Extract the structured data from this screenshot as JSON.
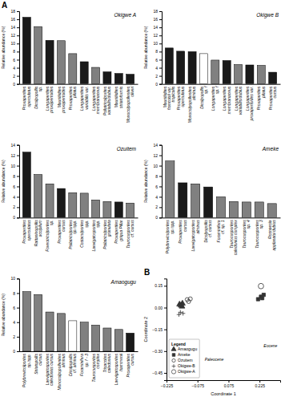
{
  "chart_data": [
    {
      "type": "bar",
      "title": "Okigwe A",
      "ylabel": "Relative abundance (%)",
      "categories": [
        "Proxapertites\noperculatus",
        "Dicolpopollis\nsp.",
        "Longapertites\nproxapertoides",
        "Mauritiidites\nproxapertoides",
        "Proxapertites\npilatus",
        "Longapertites\nvariabilis var.",
        "Longapertites\nmembranaceus",
        "Psilatricolporites\nvariabilis/dubius",
        "Mauritiidites\nstriatoformis",
        "Monocolpopollenites\noliveri"
      ],
      "values": [
        16.5,
        14.2,
        10.8,
        10.7,
        7.5,
        5.5,
        4.1,
        3.0,
        2.6,
        2.4
      ],
      "colors": [
        "#1a1a1a",
        "#808080",
        "#1a1a1a",
        "#808080",
        "#808080",
        "#1a1a1a",
        "#808080",
        "#1a1a1a",
        "#1a1a1a",
        "#1a1a1a"
      ],
      "ylim": [
        0,
        18
      ],
      "yticks": [
        0,
        2,
        4,
        6,
        8,
        10,
        12,
        14,
        16,
        18
      ],
      "annotations": [
        {
          "text": "A"
        }
      ]
    },
    {
      "type": "bar",
      "title": "Okigwe B",
      "ylabel": "Relative abundance (%)",
      "categories": [
        "Mauritiidites\nfrancoisii var.\ntropicalis",
        "Proxapertites\noperculatus",
        "Monocolpopollenites\nalminus",
        "Dicolpopollis\nsp. f",
        "Longapertites\nsp. f",
        "Longapertites\nmembranaceus",
        "Longapertites\nvariabilis/dubius",
        "Longapertites\nproxapertoides var.",
        "Proxapertites\npilatus",
        "Proxapertites\ncursus"
      ],
      "values": [
        8.9,
        8.1,
        8.0,
        7.5,
        5.9,
        5.8,
        4.8,
        4.7,
        4.6,
        2.9
      ],
      "colors": [
        "#1a1a1a",
        "#1a1a1a",
        "#1a1a1a",
        "#ffffff",
        "#808080",
        "#1a1a1a",
        "#808080",
        "#1a1a1a",
        "#808080",
        "#1a1a1a"
      ],
      "ylim": [
        0,
        18
      ],
      "yticks": [
        0,
        2,
        4,
        6,
        8,
        10,
        12,
        14,
        16,
        18
      ]
    },
    {
      "type": "bar",
      "title": "Ozuitem",
      "ylabel": "Relative abundance (%)",
      "categories": [
        "Proxapertites\noperculatus",
        "Rattaninopollis\naccipilum",
        "Foveotricolporites\nsp.",
        "Proxapertites\ncursus",
        "Psilatricolporites\nsp./spp.",
        "Costacolporites\nspp.",
        "Laevigatosporites\nspp.",
        "Psilatricolporites\ngranulata",
        "Proxapertites\ngriqua Pillar",
        "Taurocusporites\ncf. cursus"
      ],
      "values": [
        12.6,
        8.3,
        6.5,
        5.6,
        4.8,
        4.7,
        3.4,
        3.1,
        3.0,
        2.8
      ],
      "colors": [
        "#1a1a1a",
        "#808080",
        "#808080",
        "#1a1a1a",
        "#808080",
        "#808080",
        "#808080",
        "#808080",
        "#1a1a1a",
        "#808080"
      ],
      "ylim": [
        0,
        14
      ],
      "yticks": [
        0,
        2,
        4,
        6,
        8,
        10,
        12,
        14
      ]
    },
    {
      "type": "bar",
      "title": "Ameke",
      "ylabel": "Relative abundance (%)",
      "categories": [
        "Polybrevicolporites\nsp./spp.",
        "Proxapertites\ncursus",
        "Laevigatosporites\nalminus",
        "Dicolpopollis\ncf. cursus",
        "Foraminifera\ncf. sp. 1",
        "Taurocusporites\ncaledonius complex",
        "Taurocusporites\nsp. 4",
        "Taurocusporites\nsp. 3",
        "Rosnaesia\napplanata/dubius"
      ],
      "values": [
        10.9,
        6.7,
        6.5,
        5.9,
        4.0,
        3.1,
        3.0,
        3.0,
        2.7
      ],
      "colors": [
        "#808080",
        "#1a1a1a",
        "#808080",
        "#1a1a1a",
        "#808080",
        "#808080",
        "#808080",
        "#808080",
        "#808080"
      ],
      "ylim": [
        0,
        14
      ],
      "yticks": [
        0,
        2,
        4,
        6,
        8,
        10,
        12,
        14
      ]
    },
    {
      "type": "bar",
      "title": "Amaogugu",
      "ylabel": "Relative abundance (%)",
      "categories": [
        "Polybrevicolporites\nsp./spp.",
        "Striatopollis\ncursus",
        "Laevigatosporites\ncaledonius cursus",
        "Monocolpopollenites\nalminus",
        "Dicolpopollis\ncf. alminus",
        "Foraminifera\nsp. f - 3",
        "Taurocusporites\ncomplex",
        "Trisaccites\ncaledonius",
        "Laevigatosporites\nhammenii",
        "Proxapertites\ncursus"
      ],
      "values": [
        8.2,
        7.8,
        5.4,
        5.2,
        4.2,
        4.0,
        3.6,
        3.2,
        3.0,
        2.5
      ],
      "colors": [
        "#808080",
        "#808080",
        "#808080",
        "#808080",
        "#ffffff",
        "#808080",
        "#808080",
        "#808080",
        "#808080",
        "#1a1a1a"
      ],
      "ylim": [
        0,
        10
      ],
      "yticks": [
        0,
        2,
        4,
        6,
        8,
        10
      ]
    },
    {
      "type": "scatter",
      "xlabel": "Coordinate 1",
      "ylabel": "Coordinate 2",
      "xlim": [
        -0.225,
        0.325
      ],
      "ylim": [
        -0.5,
        0.2
      ],
      "xticks": [
        {
          "value": -0.225,
          "label": "−0.225"
        },
        {
          "value": -0.075,
          "label": "−0.075"
        },
        0.075,
        0.225
      ],
      "yticks": [
        {
          "value": -0.45,
          "label": "−0.45"
        },
        {
          "value": -0.3,
          "label": "−0.30"
        },
        {
          "value": -0.15,
          "label": "−0.15"
        },
        {
          "value": 0,
          "label": "0.00"
        },
        0.15
      ],
      "series": [
        {
          "name": "Amaogugu",
          "marker": "triangle",
          "color": "#333333",
          "x": [
            -0.148,
            -0.155,
            -0.162,
            -0.15
          ],
          "y": [
            0.028,
            0.015,
            0.022,
            0.008
          ]
        },
        {
          "name": "Ameke",
          "marker": "square",
          "color": "#333333",
          "x": [
            0.218,
            0.232,
            0.245,
            0.238
          ],
          "y": [
            0.058,
            0.075,
            0.088,
            0.065
          ]
        },
        {
          "name": "Ozuitem",
          "marker": "circle-open",
          "color": "#333333",
          "x": [
            -0.125,
            -0.118,
            -0.11
          ],
          "y": [
            0.055,
            0.042,
            0.06
          ]
        },
        {
          "name": "Okigwe-B",
          "marker": "plus",
          "color": "#333333",
          "x": [
            -0.145,
            -0.158,
            -0.165
          ],
          "y": [
            -0.04,
            -0.032,
            -0.048
          ]
        },
        {
          "name": "Okigwe-A",
          "marker": "circle-open-large",
          "color": "#333333",
          "x": [
            0.232
          ],
          "y": [
            0.148
          ]
        }
      ],
      "legend": "lower left",
      "legend_title": "Legend",
      "annotations": [
        {
          "text": "B"
        },
        {
          "text": "Eocene",
          "x": 0.245,
          "y": -0.275
        },
        {
          "text": "Paleocene",
          "x": -0.04,
          "y": -0.37
        }
      ]
    }
  ]
}
